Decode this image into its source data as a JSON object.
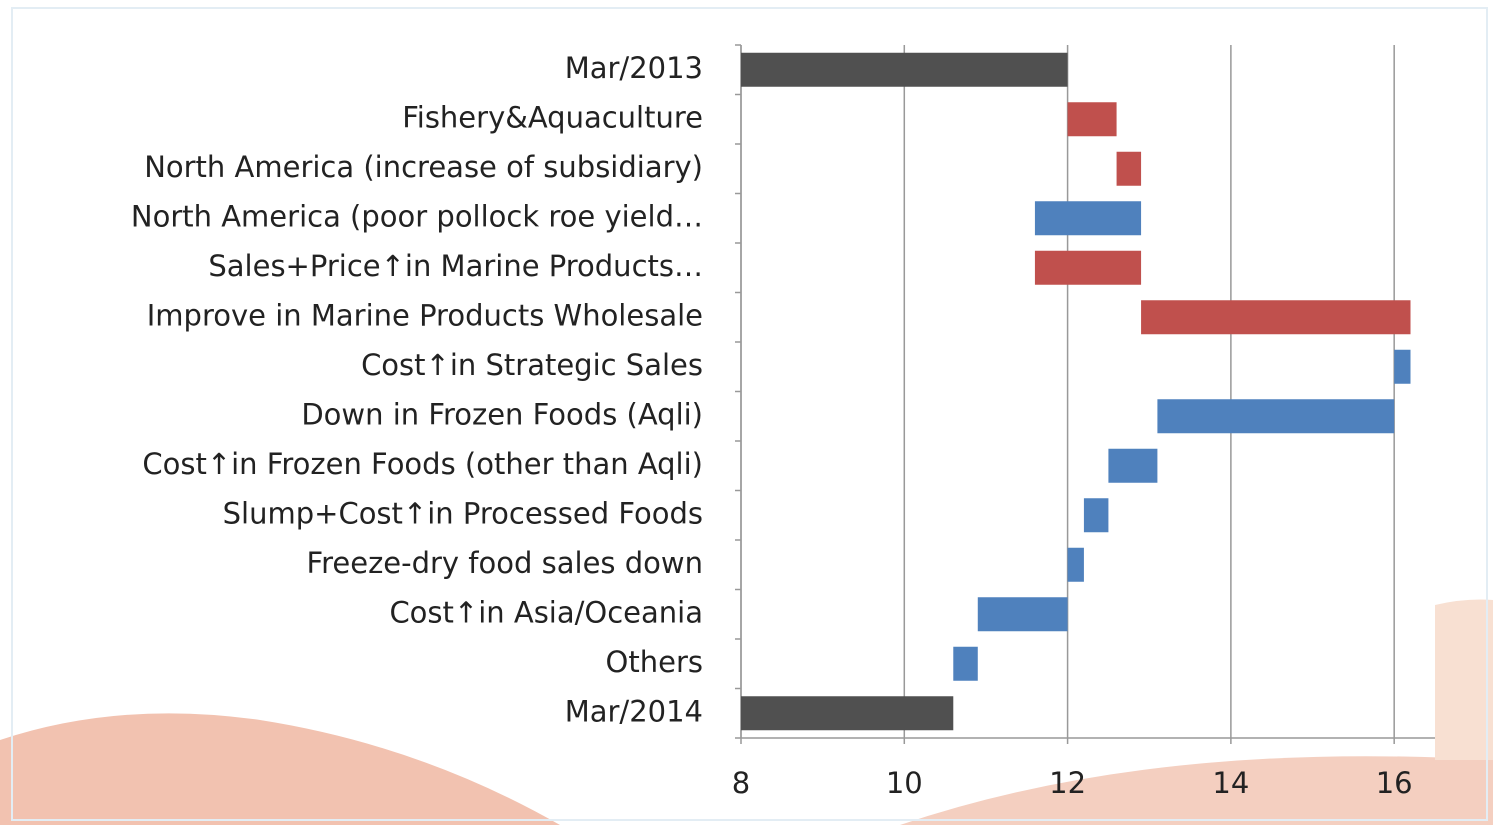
{
  "chart_data": {
    "type": "waterfall",
    "categories": [
      "Mar/2013",
      "Fishery&Aquaculture",
      "North America (increase of subsidiary)",
      "North America (poor pollock roe yield…",
      "Sales+Price↑in Marine Products…",
      "Improve in Marine Products Wholesale",
      "Cost↑in Strategic Sales",
      "Down in Frozen Foods (Aqli)",
      "Cost↑in Frozen Foods (other than Aqli)",
      "Slump+Cost↑in Processed Foods",
      "Freeze-dry food sales down",
      "Cost↑in Asia/Oceania",
      "Others",
      "Mar/2014"
    ],
    "values": [
      12.0,
      0.6,
      0.3,
      -1.3,
      1.3,
      3.3,
      -0.2,
      -2.9,
      -0.6,
      -0.3,
      -0.2,
      -1.1,
      -0.3,
      10.6
    ],
    "total_color": "#505050",
    "increase_color": "#c0504d",
    "decrease_color": "#4f81bd",
    "xlim": [
      8,
      16.5
    ],
    "xticks": [
      8,
      10,
      12,
      14,
      16
    ],
    "grid": true
  }
}
